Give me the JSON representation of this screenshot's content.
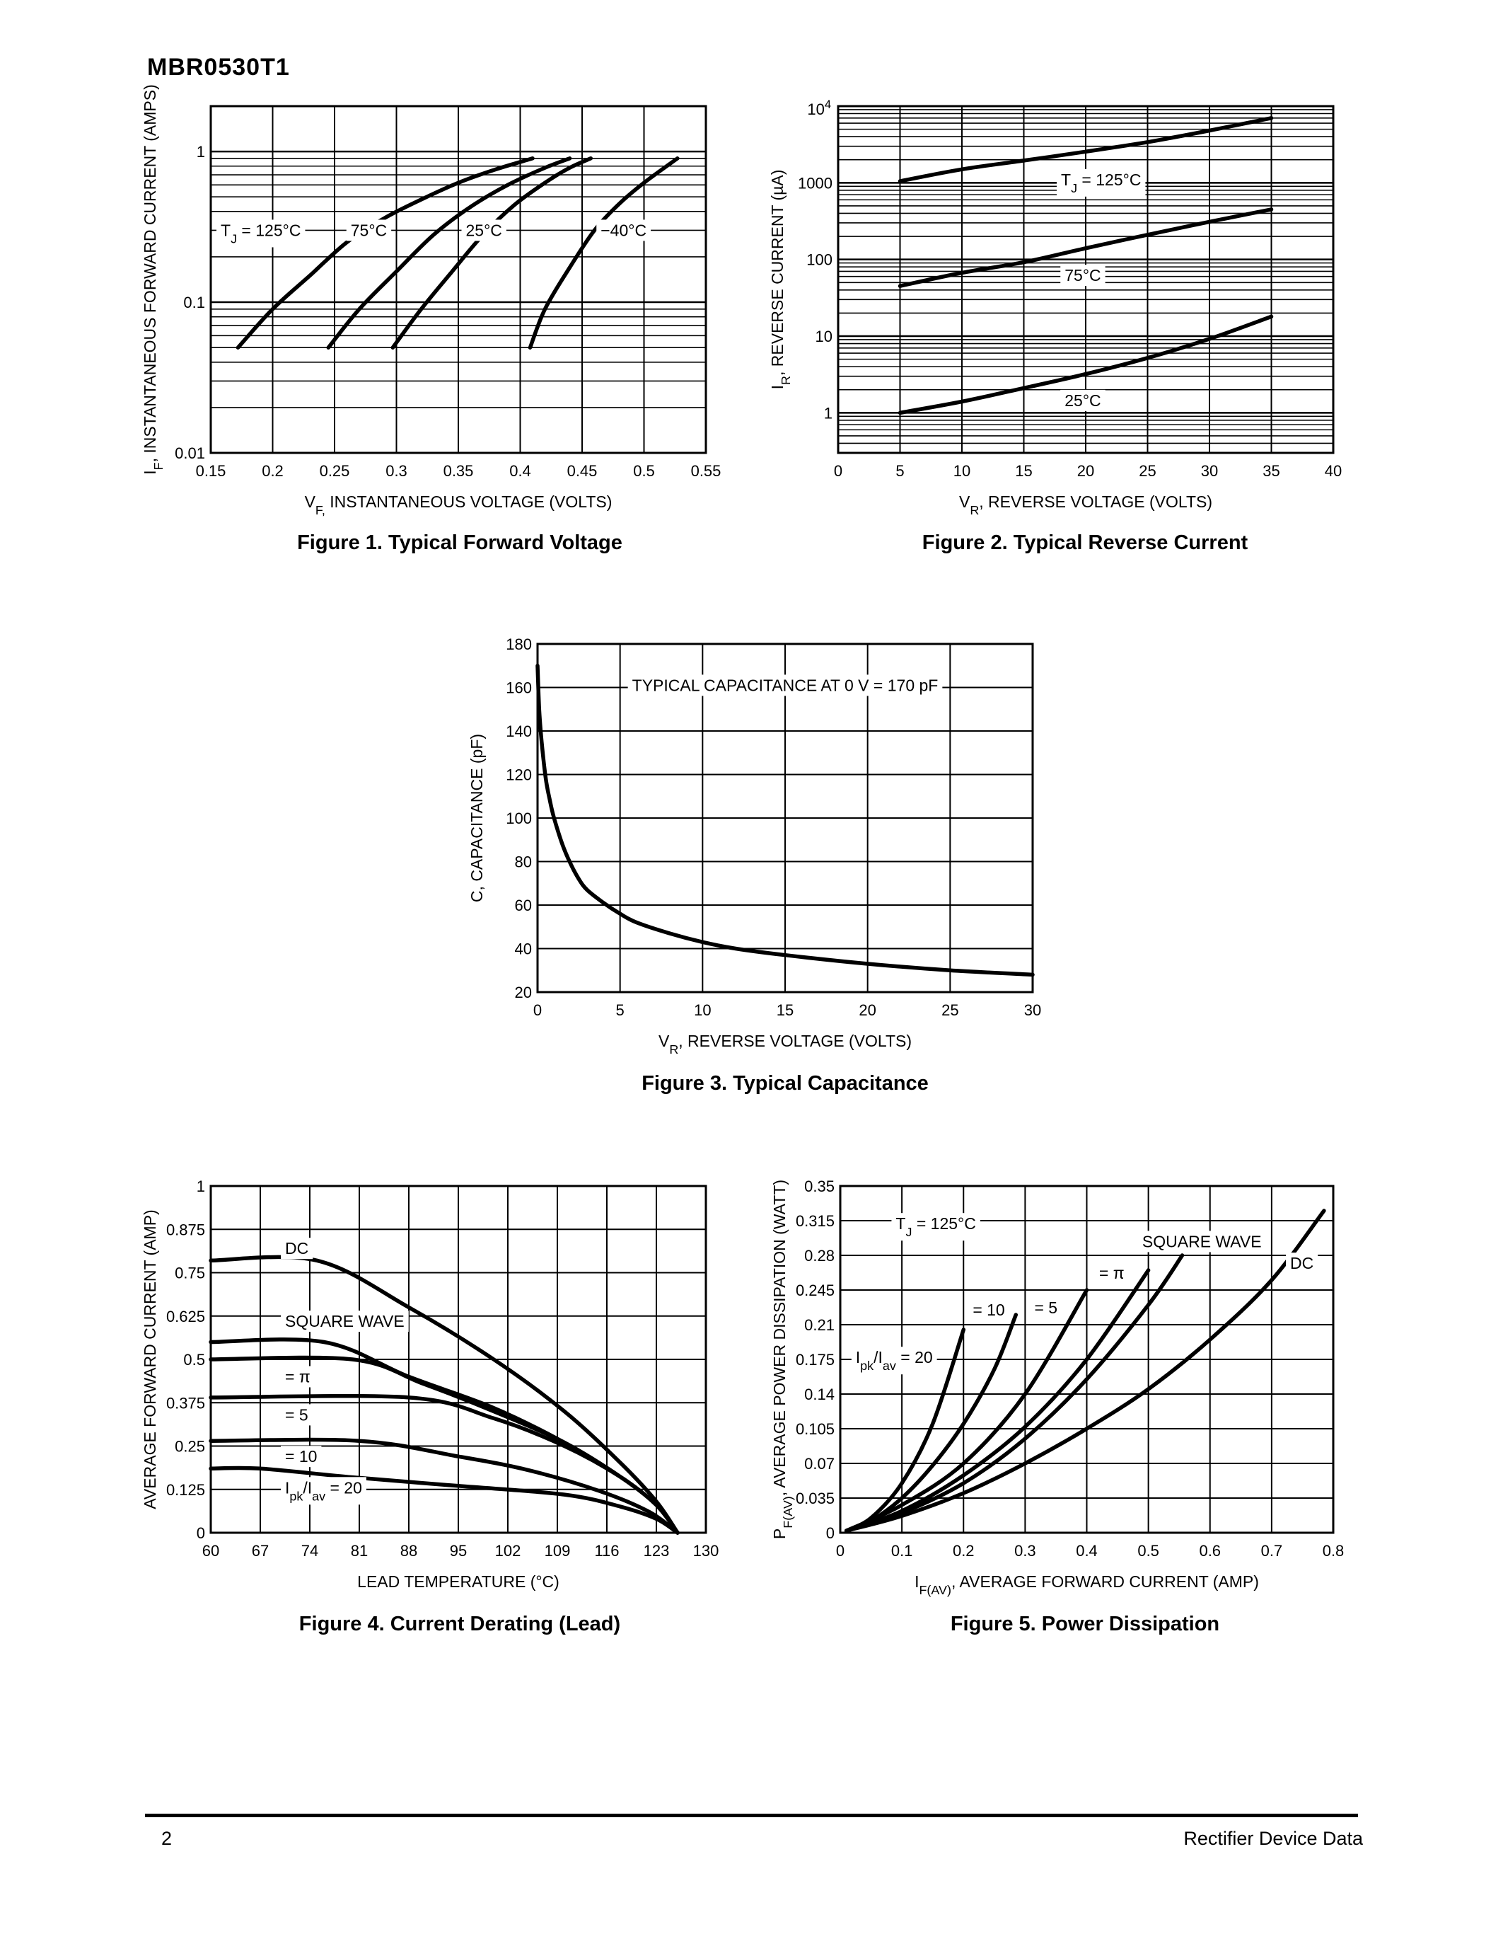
{
  "header": {
    "part_number": "MBR0530T1"
  },
  "footer": {
    "page_number": "2",
    "publication": "Rectifier Device Data"
  },
  "chart_data": [
    {
      "id": "fig1",
      "type": "line",
      "caption": "Figure 1. Typical Forward Voltage",
      "ylabel_prefix": "I",
      "ylabel_sub": "F",
      "ylabel_rest": ", INSTANTANEOUS FORWARD CURRENT (AMPS)",
      "xlabel_prefix": "V",
      "xlabel_sub": "F,",
      "xlabel_rest": " INSTANTANEOUS VOLTAGE (VOLTS)",
      "xlim": [
        0.15,
        0.55
      ],
      "ylim": [
        0.01,
        2
      ],
      "yscale": "log",
      "grid": true,
      "x_ticks": [
        0.15,
        0.2,
        0.25,
        0.3,
        0.35,
        0.4,
        0.45,
        0.5,
        0.55
      ],
      "x_tick_labels": [
        "0.15",
        "0.2",
        "0.25",
        "0.3",
        "0.35",
        "0.4",
        "0.45",
        "0.5",
        "0.55"
      ],
      "y_ticks": [
        0.01,
        0.1,
        1
      ],
      "y_tick_labels": [
        "0.01",
        "0.1",
        "1"
      ],
      "series": [
        {
          "name": "T_J = 125°C",
          "x": [
            0.172,
            0.2,
            0.23,
            0.26,
            0.29,
            0.32,
            0.35,
            0.38,
            0.41
          ],
          "y": [
            0.05,
            0.09,
            0.15,
            0.25,
            0.36,
            0.48,
            0.62,
            0.76,
            0.9
          ]
        },
        {
          "name": "75°C",
          "x": [
            0.245,
            0.27,
            0.3,
            0.33,
            0.36,
            0.39,
            0.42,
            0.44
          ],
          "y": [
            0.05,
            0.09,
            0.16,
            0.28,
            0.43,
            0.6,
            0.78,
            0.9
          ]
        },
        {
          "name": "25°C",
          "x": [
            0.297,
            0.32,
            0.345,
            0.37,
            0.395,
            0.42,
            0.44,
            0.457
          ],
          "y": [
            0.05,
            0.09,
            0.16,
            0.28,
            0.44,
            0.62,
            0.78,
            0.9
          ]
        },
        {
          "name": "−40°C",
          "x": [
            0.408,
            0.42,
            0.44,
            0.46,
            0.48,
            0.5,
            0.527
          ],
          "y": [
            0.05,
            0.09,
            0.17,
            0.3,
            0.45,
            0.62,
            0.9
          ]
        }
      ],
      "annotations": [
        {
          "kind": "tj",
          "sub": "J",
          "rest": " = 125°C",
          "x": 0.158,
          "y": 0.3
        },
        {
          "kind": "plain",
          "text": "75°C",
          "x": 0.263,
          "y": 0.3
        },
        {
          "kind": "plain",
          "text": "25°C",
          "x": 0.356,
          "y": 0.3
        },
        {
          "kind": "plain",
          "text": "−40°C",
          "x": 0.465,
          "y": 0.3
        }
      ]
    },
    {
      "id": "fig2",
      "type": "line",
      "caption": "Figure 2. Typical Reverse Current",
      "ylabel_prefix": "I",
      "ylabel_sub": "R",
      "ylabel_rest": ", REVERSE CURRENT (µA)",
      "xlabel_prefix": "V",
      "xlabel_sub": "R",
      "xlabel_rest": ", REVERSE VOLTAGE (VOLTS)",
      "xlim": [
        0,
        40
      ],
      "ylim": [
        0.3,
        10000
      ],
      "yscale": "log",
      "grid": true,
      "x_ticks": [
        0,
        5,
        10,
        15,
        20,
        25,
        30,
        35,
        40
      ],
      "x_tick_labels": [
        "0",
        "5",
        "10",
        "15",
        "20",
        "25",
        "30",
        "35",
        "40"
      ],
      "y_ticks": [
        1,
        10,
        100,
        1000
      ],
      "y_tick_labels": [
        "1",
        "10",
        "100",
        "1000"
      ],
      "y_top_label_base": "10",
      "y_top_label_exp": "4",
      "series": [
        {
          "name": "T_J = 125°C",
          "x": [
            5,
            10,
            15,
            20,
            25,
            30,
            35
          ],
          "y": [
            1050,
            1500,
            1950,
            2550,
            3400,
            4800,
            7000
          ]
        },
        {
          "name": "75°C",
          "x": [
            5,
            10,
            15,
            20,
            25,
            30,
            35
          ],
          "y": [
            45,
            67,
            92,
            140,
            210,
            310,
            450
          ]
        },
        {
          "name": "25°C",
          "x": [
            5,
            10,
            15,
            20,
            25,
            30,
            35
          ],
          "y": [
            1,
            1.4,
            2.1,
            3.2,
            5.2,
            9.2,
            18
          ]
        }
      ],
      "annotations": [
        {
          "kind": "tj",
          "sub": "J",
          "rest": " = 125°C",
          "x": 18.0,
          "y": 1100
        },
        {
          "kind": "plain",
          "text": "75°C",
          "x": 18.3,
          "y": 62
        },
        {
          "kind": "plain",
          "text": "25°C",
          "x": 18.3,
          "y": 1.45
        }
      ]
    },
    {
      "id": "fig3",
      "type": "line",
      "caption": "Figure 3. Typical Capacitance",
      "ylabel": "C, CAPACITANCE (pF)",
      "xlabel_prefix": "V",
      "xlabel_sub": "R",
      "xlabel_rest": ", REVERSE VOLTAGE (VOLTS)",
      "xlim": [
        0,
        30
      ],
      "ylim": [
        20,
        180
      ],
      "yscale": "linear",
      "grid": true,
      "x_ticks": [
        0,
        5,
        10,
        15,
        20,
        25,
        30
      ],
      "x_tick_labels": [
        "0",
        "5",
        "10",
        "15",
        "20",
        "25",
        "30"
      ],
      "y_ticks": [
        20,
        40,
        60,
        80,
        100,
        120,
        140,
        160,
        180
      ],
      "y_tick_labels": [
        "20",
        "40",
        "60",
        "80",
        "100",
        "120",
        "140",
        "160",
        "180"
      ],
      "series": [
        {
          "name": "",
          "x": [
            0,
            0.1,
            0.25,
            0.5,
            0.75,
            1,
            1.5,
            2,
            2.5,
            3,
            4,
            5,
            6,
            8,
            10,
            12,
            15,
            20,
            25,
            30
          ],
          "y": [
            170,
            150,
            135,
            118,
            108,
            100,
            88,
            79,
            72,
            67,
            61,
            56,
            52,
            47,
            43,
            40,
            37,
            33,
            30,
            28
          ]
        }
      ],
      "annotations": [
        {
          "kind": "plain",
          "text": "TYPICAL CAPACITANCE AT 0 V = 170 pF",
          "x": 15.0,
          "y": 161
        }
      ]
    },
    {
      "id": "fig4",
      "type": "line",
      "caption": "Figure 4. Current Derating (Lead)",
      "ylabel": "AVERAGE FORWARD CURRENT (AMP)",
      "xlabel": "LEAD TEMPERATURE (°C)",
      "xlim": [
        60,
        130
      ],
      "ylim": [
        0,
        1
      ],
      "yscale": "linear",
      "grid": true,
      "x_ticks": [
        60,
        67,
        74,
        81,
        88,
        95,
        102,
        109,
        116,
        123,
        130
      ],
      "x_tick_labels": [
        "60",
        "67",
        "74",
        "81",
        "88",
        "95",
        "102",
        "109",
        "116",
        "123",
        "130"
      ],
      "y_ticks": [
        0,
        0.125,
        0.25,
        0.375,
        0.5,
        0.625,
        0.75,
        0.875,
        1
      ],
      "y_tick_labels": [
        "0",
        "0.125",
        "0.25",
        "0.375",
        "0.5",
        "0.625",
        "0.75",
        "0.875",
        "1"
      ],
      "series": [
        {
          "name": "DC",
          "x": [
            60,
            75,
            88,
            100,
            110,
            118,
            123,
            126
          ],
          "y": [
            0.785,
            0.785,
            0.65,
            0.5,
            0.35,
            0.2,
            0.09,
            0
          ]
        },
        {
          "name": "SQUARE WAVE",
          "x": [
            60,
            76,
            88,
            100,
            110,
            118,
            123,
            126
          ],
          "y": [
            0.55,
            0.55,
            0.45,
            0.36,
            0.26,
            0.16,
            0.08,
            0
          ]
        },
        {
          "name": "= π",
          "x": [
            60,
            80,
            90,
            100,
            110,
            118,
            123,
            126
          ],
          "y": [
            0.5,
            0.5,
            0.43,
            0.35,
            0.26,
            0.16,
            0.08,
            0
          ]
        },
        {
          "name": "= 5",
          "x": [
            60,
            88,
            100,
            110,
            118,
            123,
            126
          ],
          "y": [
            0.39,
            0.39,
            0.33,
            0.25,
            0.16,
            0.08,
            0
          ]
        },
        {
          "name": "= 10",
          "x": [
            60,
            81,
            95,
            105,
            115,
            122,
            126
          ],
          "y": [
            0.265,
            0.265,
            0.22,
            0.18,
            0.12,
            0.06,
            0
          ]
        },
        {
          "name": "I_pk/I_av = 20",
          "x": [
            60,
            67,
            80,
            95,
            110,
            118,
            123,
            126
          ],
          "y": [
            0.185,
            0.185,
            0.16,
            0.135,
            0.11,
            0.075,
            0.04,
            0
          ]
        }
      ],
      "annotations": [
        {
          "kind": "plain",
          "text": "DC",
          "x": 70.5,
          "y": 0.82
        },
        {
          "kind": "plain",
          "text": "SQUARE WAVE",
          "x": 70.5,
          "y": 0.61
        },
        {
          "kind": "plain",
          "text": "= π",
          "x": 70.5,
          "y": 0.45
        },
        {
          "kind": "plain",
          "text": "= 5",
          "x": 70.5,
          "y": 0.34
        },
        {
          "kind": "plain",
          "text": "= 10",
          "x": 70.5,
          "y": 0.22
        },
        {
          "kind": "ipk",
          "x": 70.5,
          "y": 0.13
        }
      ]
    },
    {
      "id": "fig5",
      "type": "line",
      "caption": "Figure 5. Power Dissipation",
      "ylabel_prefix": "P",
      "ylabel_sub": "F(AV)",
      "ylabel_rest": ", AVERAGE POWER DISSIPATION (WATT)",
      "xlabel_prefix": "I",
      "xlabel_sub": "F(AV)",
      "xlabel_rest": ", AVERAGE FORWARD CURRENT (AMP)",
      "xlim": [
        0,
        0.8
      ],
      "ylim": [
        0,
        0.35
      ],
      "yscale": "linear",
      "grid": true,
      "x_ticks": [
        0,
        0.1,
        0.2,
        0.3,
        0.4,
        0.5,
        0.6,
        0.7,
        0.8
      ],
      "x_tick_labels": [
        "0",
        "0.1",
        "0.2",
        "0.3",
        "0.4",
        "0.5",
        "0.6",
        "0.7",
        "0.8"
      ],
      "y_ticks": [
        0,
        0.035,
        0.07,
        0.105,
        0.14,
        0.175,
        0.21,
        0.245,
        0.28,
        0.315,
        0.35
      ],
      "y_tick_labels": [
        "0",
        "0.035",
        "0.07",
        "0.105",
        "0.14",
        "0.175",
        "0.21",
        "0.245",
        "0.28",
        "0.315",
        "0.35"
      ],
      "series": [
        {
          "name": "I_pk/I_av = 20",
          "x": [
            0.01,
            0.05,
            0.1,
            0.15,
            0.2
          ],
          "y": [
            0.002,
            0.015,
            0.05,
            0.11,
            0.205
          ]
        },
        {
          "name": "= 10",
          "x": [
            0.01,
            0.05,
            0.1,
            0.15,
            0.2,
            0.25,
            0.285
          ],
          "y": [
            0.002,
            0.012,
            0.035,
            0.068,
            0.11,
            0.165,
            0.22
          ]
        },
        {
          "name": "= 5",
          "x": [
            0.01,
            0.1,
            0.2,
            0.3,
            0.4
          ],
          "y": [
            0.002,
            0.028,
            0.07,
            0.14,
            0.245
          ]
        },
        {
          "name": "= π",
          "x": [
            0.01,
            0.1,
            0.2,
            0.3,
            0.4,
            0.5
          ],
          "y": [
            0.002,
            0.022,
            0.058,
            0.107,
            0.175,
            0.265
          ]
        },
        {
          "name": "SQUARE WAVE",
          "x": [
            0.01,
            0.1,
            0.2,
            0.3,
            0.4,
            0.5,
            0.555
          ],
          "y": [
            0.002,
            0.02,
            0.05,
            0.095,
            0.155,
            0.23,
            0.28
          ]
        },
        {
          "name": "DC",
          "x": [
            0.01,
            0.1,
            0.2,
            0.3,
            0.4,
            0.5,
            0.6,
            0.7,
            0.785
          ],
          "y": [
            0.002,
            0.017,
            0.04,
            0.07,
            0.105,
            0.145,
            0.195,
            0.255,
            0.325
          ]
        }
      ],
      "annotations": [
        {
          "kind": "tj",
          "sub": "J",
          "rest": " = 125°C",
          "x": 0.09,
          "y": 0.312
        },
        {
          "kind": "plain",
          "text": "SQUARE WAVE",
          "x": 0.49,
          "y": 0.294
        },
        {
          "kind": "plain",
          "text": "DC",
          "x": 0.73,
          "y": 0.272
        },
        {
          "kind": "plain",
          "text": "= π",
          "x": 0.42,
          "y": 0.262
        },
        {
          "kind": "plain",
          "text": "= 5",
          "x": 0.315,
          "y": 0.227
        },
        {
          "kind": "plain",
          "text": "= 10",
          "x": 0.215,
          "y": 0.225
        },
        {
          "kind": "ipk",
          "x": 0.025,
          "y": 0.177
        }
      ]
    }
  ]
}
